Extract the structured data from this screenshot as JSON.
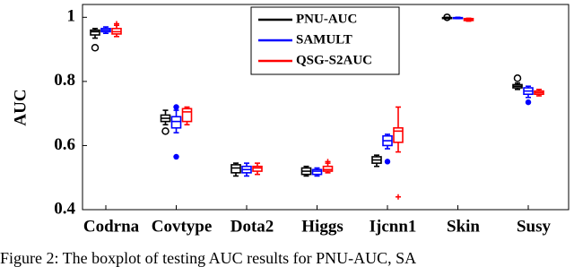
{
  "chart_data": {
    "type": "box",
    "y_label": "AUC",
    "caption": "Figure 2:  The boxplot of testing AUC results for PNU-AUC, SA",
    "categories": [
      "Codrna",
      "Covtype",
      "Dota2",
      "Higgs",
      "Ijcnn1",
      "Skin",
      "Susy"
    ],
    "ylim": [
      0.4,
      1.04
    ],
    "yticks": [
      0.4,
      0.6,
      0.8,
      {
        "value": 1,
        "label": "1"
      }
    ],
    "legend": "top-center",
    "series": [
      {
        "name": "PNU-AUC",
        "color": "#000000",
        "marker": "circle",
        "median": [
          0.955,
          0.685,
          0.53,
          0.52,
          0.555,
          0.998,
          0.785
        ],
        "q1": [
          0.945,
          0.675,
          0.515,
          0.51,
          0.545,
          0.997,
          0.78
        ],
        "q3": [
          0.96,
          0.695,
          0.54,
          0.53,
          0.565,
          0.999,
          0.79
        ],
        "whisker_low": [
          0.935,
          0.665,
          0.505,
          0.505,
          0.535,
          0.996,
          0.775
        ],
        "whisker_high": [
          0.965,
          0.71,
          0.545,
          0.535,
          0.57,
          1.0,
          0.795
        ],
        "outliers": [
          [
            0.905
          ],
          [
            0.645
          ],
          [],
          [],
          [],
          [
            1.0
          ],
          [
            0.81
          ]
        ]
      },
      {
        "name": "SAMULT",
        "color": "#0000ff",
        "marker": "dot",
        "median": [
          0.96,
          0.675,
          0.525,
          0.52,
          0.615,
          0.998,
          0.77
        ],
        "q1": [
          0.955,
          0.655,
          0.515,
          0.51,
          0.6,
          0.997,
          0.76
        ],
        "q3": [
          0.965,
          0.69,
          0.535,
          0.525,
          0.63,
          0.999,
          0.78
        ],
        "whisker_low": [
          0.95,
          0.64,
          0.505,
          0.505,
          0.59,
          0.996,
          0.75
        ],
        "whisker_high": [
          0.97,
          0.71,
          0.545,
          0.53,
          0.635,
          1.0,
          0.785
        ],
        "outliers": [
          [],
          [
            0.565,
            0.72
          ],
          [],
          [],
          [
            0.55
          ],
          [],
          [
            0.735
          ]
        ]
      },
      {
        "name": "QSG-S2AUC",
        "color": "#ff0000",
        "marker": "plus",
        "median": [
          0.955,
          0.705,
          0.53,
          0.525,
          0.645,
          0.993,
          0.765
        ],
        "q1": [
          0.948,
          0.675,
          0.52,
          0.52,
          0.61,
          0.99,
          0.76
        ],
        "q3": [
          0.965,
          0.715,
          0.535,
          0.535,
          0.655,
          0.996,
          0.77
        ],
        "whisker_low": [
          0.94,
          0.665,
          0.51,
          0.515,
          0.58,
          0.988,
          0.755
        ],
        "whisker_high": [
          0.975,
          0.72,
          0.545,
          0.545,
          0.72,
          0.997,
          0.775
        ],
        "outliers": [
          [
            0.98
          ],
          [],
          [],
          [
            0.55
          ],
          [
            0.44
          ],
          [],
          []
        ]
      }
    ]
  }
}
